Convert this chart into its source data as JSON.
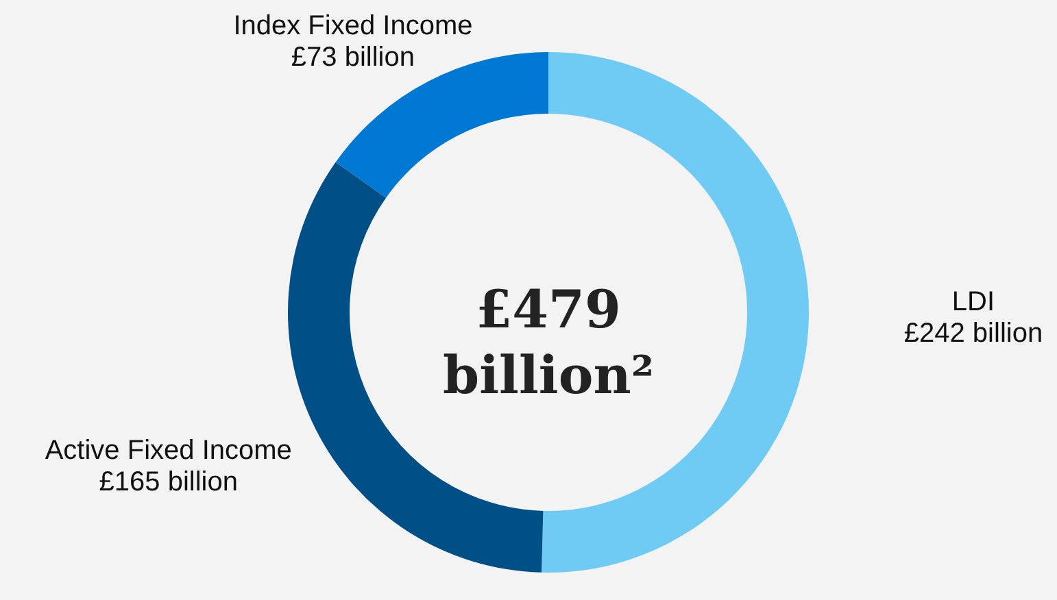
{
  "chart_data": {
    "type": "donut",
    "categories": [
      "LDI",
      "Active Fixed Income",
      "Index Fixed Income"
    ],
    "values": [
      242,
      165,
      73
    ],
    "value_labels": [
      "£242 billion",
      "£165 billion",
      "£73 billion"
    ],
    "colors": [
      "#70cbf4",
      "#004f86",
      "#0078d4"
    ],
    "annotations": [
      "£479 billion²"
    ]
  }
}
